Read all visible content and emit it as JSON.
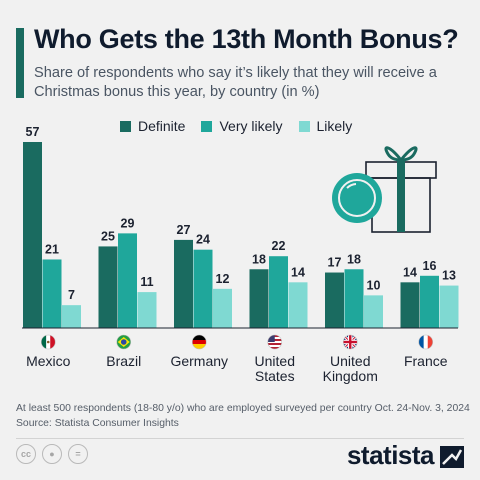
{
  "title": "Who Gets the 13th Month Bonus?",
  "subtitle": "Share of respondents who say it’s likely that they will receive a Christmas bonus this year, by country (in %)",
  "footnote": "At least 500 respondents (18-80 y/o) who are employed surveyed per country Oct. 24-Nov. 3, 2024",
  "source": "Source: Statista Consumer Insights",
  "brand": "statista",
  "cc_icons": [
    "cc-icon",
    "by-icon",
    "nd-icon"
  ],
  "colors": {
    "accent": "#1a6b60",
    "definite": "#1a6b60",
    "very_likely": "#1fa79b",
    "likely": "#7fd9d2"
  },
  "illustration": "gift-and-plate-icon",
  "chart_data": {
    "type": "bar",
    "categories": [
      "Mexico",
      "Brazil",
      "Germany",
      "United States",
      "United Kingdom",
      "France"
    ],
    "flags": [
      "mexico-flag-icon",
      "brazil-flag-icon",
      "germany-flag-icon",
      "us-flag-icon",
      "uk-flag-icon",
      "france-flag-icon"
    ],
    "series": [
      {
        "name": "Definite",
        "values": [
          57,
          25,
          27,
          18,
          17,
          14
        ]
      },
      {
        "name": "Very likely",
        "values": [
          21,
          29,
          24,
          22,
          18,
          16
        ]
      },
      {
        "name": "Likely",
        "values": [
          7,
          11,
          12,
          14,
          10,
          13
        ]
      }
    ],
    "ylim": [
      0,
      57
    ],
    "legend_position": "top",
    "grid": false
  }
}
